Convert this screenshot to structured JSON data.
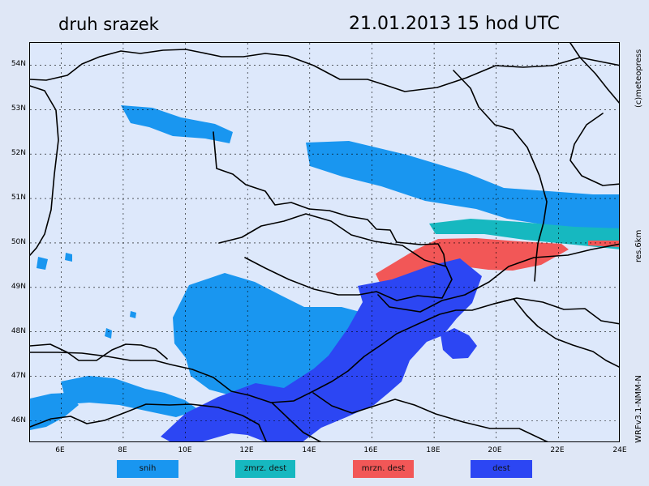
{
  "header": {
    "title_left": "druh srazek",
    "title_right": "21.01.2013   15 hod UTC"
  },
  "side_labels": {
    "copyright": "(c)meteopress",
    "resolution": "res.6km",
    "model": "WRFv3.1-NMM-N"
  },
  "map": {
    "projection": "lat-lon",
    "lon_min": 5,
    "lon_max": 24,
    "lat_min": 45.5,
    "lat_max": 54.5,
    "background_color": "#dde8fb",
    "lat_labels": [
      "54N",
      "53N",
      "52N",
      "51N",
      "50N",
      "49N",
      "48N",
      "47N",
      "46N"
    ],
    "lon_labels": [
      "6E",
      "8E",
      "10E",
      "12E",
      "14E",
      "16E",
      "18E",
      "20E",
      "22E",
      "24E"
    ],
    "grid": {
      "shown": true,
      "line_color": "#000000",
      "style": "dotted"
    },
    "features": {
      "borders": "black",
      "coastline": "black"
    },
    "precip_colors": {
      "snow": "#1996f0",
      "freezing_drizzle": "#16b8c0",
      "freezing_rain": "#f25757",
      "rain": "#2c46f3"
    }
  },
  "legend": {
    "items": [
      {
        "label": "snih",
        "color": "#1996f0"
      },
      {
        "label": "zmrz. dest",
        "color": "#16b8c0"
      },
      {
        "label": "mrzn. dest",
        "color": "#f25757"
      },
      {
        "label": "dest",
        "color": "#2c46f3"
      }
    ]
  }
}
